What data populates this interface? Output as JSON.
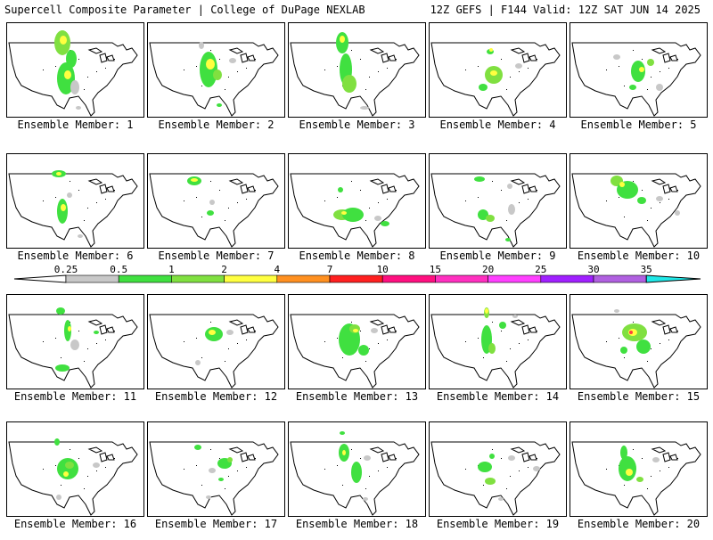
{
  "header": {
    "title": "Supercell Composite Parameter | College of DuPage NEXLAB",
    "run_info": "12Z GEFS | F144 Valid: 12Z SAT JUN 14 2025"
  },
  "caption_prefix": "Ensemble Member:",
  "members": [
    {
      "label": "Ensemble Member: 1",
      "blobs": [
        [
          62,
          22,
          9,
          14,
          "#80e040"
        ],
        [
          63,
          19,
          4,
          5,
          "#ffff40"
        ],
        [
          72,
          40,
          6,
          10,
          "#40e040"
        ],
        [
          66,
          62,
          10,
          18,
          "#40e040"
        ],
        [
          68,
          58,
          4,
          5,
          "#ffff40"
        ],
        [
          76,
          72,
          5,
          8,
          "#c8c8c8"
        ],
        [
          80,
          95,
          3,
          2,
          "#c8c8c8"
        ]
      ]
    },
    {
      "label": "Ensemble Member: 2",
      "blobs": [
        [
          60,
          25,
          3,
          4,
          "#c8c8c8"
        ],
        [
          68,
          52,
          10,
          20,
          "#40e040"
        ],
        [
          70,
          46,
          5,
          6,
          "#ffff40"
        ],
        [
          78,
          58,
          5,
          6,
          "#80e040"
        ],
        [
          95,
          42,
          4,
          3,
          "#c8c8c8"
        ],
        [
          80,
          92,
          3,
          2,
          "#40e040"
        ]
      ]
    },
    {
      "label": "Ensemble Member: 3",
      "blobs": [
        [
          60,
          22,
          7,
          12,
          "#40e040"
        ],
        [
          60,
          18,
          3,
          4,
          "#ffff40"
        ],
        [
          64,
          52,
          7,
          18,
          "#40e040"
        ],
        [
          68,
          68,
          8,
          10,
          "#80e040"
        ],
        [
          85,
          95,
          5,
          2,
          "#c8c8c8"
        ]
      ]
    },
    {
      "label": "Ensemble Member: 4",
      "blobs": [
        [
          68,
          32,
          4,
          3,
          "#40e040"
        ],
        [
          69,
          30,
          2,
          2,
          "#ffff40"
        ],
        [
          72,
          58,
          10,
          10,
          "#80e040"
        ],
        [
          72,
          56,
          4,
          3,
          "#ffff40"
        ],
        [
          100,
          48,
          4,
          3,
          "#c8c8c8"
        ],
        [
          60,
          72,
          5,
          4,
          "#40e040"
        ]
      ]
    },
    {
      "label": "Ensemble Member: 5",
      "blobs": [
        [
          52,
          38,
          4,
          3,
          "#c8c8c8"
        ],
        [
          76,
          54,
          8,
          12,
          "#40e040"
        ],
        [
          80,
          52,
          3,
          3,
          "#ffff40"
        ],
        [
          90,
          44,
          4,
          4,
          "#80e040"
        ],
        [
          70,
          72,
          4,
          3,
          "#40e040"
        ],
        [
          100,
          72,
          4,
          4,
          "#c8c8c8"
        ]
      ]
    },
    {
      "label": "Ensemble Member: 6",
      "blobs": [
        [
          58,
          22,
          8,
          4,
          "#40e040"
        ],
        [
          58,
          22,
          3,
          2,
          "#ffff40"
        ],
        [
          62,
          64,
          6,
          14,
          "#40e040"
        ],
        [
          63,
          60,
          3,
          4,
          "#ffff40"
        ],
        [
          70,
          46,
          3,
          3,
          "#c8c8c8"
        ],
        [
          82,
          92,
          3,
          2,
          "#c8c8c8"
        ]
      ]
    },
    {
      "label": "Ensemble Member: 7",
      "blobs": [
        [
          52,
          30,
          8,
          5,
          "#40e040"
        ],
        [
          52,
          29,
          4,
          2,
          "#ffff40"
        ],
        [
          70,
          66,
          4,
          3,
          "#40e040"
        ],
        [
          72,
          54,
          3,
          3,
          "#c8c8c8"
        ]
      ]
    },
    {
      "label": "Ensemble Member: 8",
      "blobs": [
        [
          60,
          68,
          10,
          6,
          "#80e040"
        ],
        [
          72,
          68,
          12,
          8,
          "#40e040"
        ],
        [
          62,
          66,
          3,
          2,
          "#ffff40"
        ],
        [
          58,
          40,
          3,
          3,
          "#40e040"
        ],
        [
          100,
          72,
          4,
          3,
          "#c8c8c8"
        ],
        [
          108,
          78,
          5,
          3,
          "#40e040"
        ]
      ]
    },
    {
      "label": "Ensemble Member: 9",
      "blobs": [
        [
          56,
          28,
          6,
          3,
          "#40e040"
        ],
        [
          60,
          68,
          6,
          6,
          "#40e040"
        ],
        [
          68,
          72,
          5,
          4,
          "#80e040"
        ],
        [
          92,
          62,
          4,
          6,
          "#c8c8c8"
        ],
        [
          88,
          96,
          3,
          2,
          "#40e040"
        ],
        [
          90,
          36,
          3,
          3,
          "#c8c8c8"
        ]
      ]
    },
    {
      "label": "Ensemble Member: 10",
      "blobs": [
        [
          52,
          30,
          7,
          6,
          "#80e040"
        ],
        [
          64,
          40,
          12,
          10,
          "#40e040"
        ],
        [
          58,
          34,
          3,
          3,
          "#ffff40"
        ],
        [
          80,
          52,
          5,
          4,
          "#40e040"
        ],
        [
          100,
          50,
          4,
          3,
          "#c8c8c8"
        ],
        [
          120,
          66,
          3,
          3,
          "#c8c8c8"
        ]
      ]
    },
    {
      "label": "Ensemble Member: 11",
      "blobs": [
        [
          60,
          18,
          5,
          4,
          "#40e040"
        ],
        [
          68,
          40,
          4,
          12,
          "#40e040"
        ],
        [
          70,
          38,
          2,
          3,
          "#ffff40"
        ],
        [
          76,
          56,
          5,
          6,
          "#c8c8c8"
        ],
        [
          62,
          82,
          8,
          4,
          "#40e040"
        ],
        [
          100,
          42,
          3,
          2,
          "#40e040"
        ]
      ]
    },
    {
      "label": "Ensemble Member: 12",
      "blobs": [
        [
          74,
          44,
          10,
          8,
          "#40e040"
        ],
        [
          72,
          42,
          4,
          3,
          "#ffff40"
        ],
        [
          92,
          42,
          4,
          3,
          "#c8c8c8"
        ],
        [
          56,
          76,
          3,
          3,
          "#c8c8c8"
        ]
      ]
    },
    {
      "label": "Ensemble Member: 13",
      "blobs": [
        [
          68,
          50,
          12,
          18,
          "#40e040"
        ],
        [
          74,
          38,
          6,
          5,
          "#80e040"
        ],
        [
          75,
          40,
          3,
          2,
          "#ffff40"
        ],
        [
          84,
          62,
          6,
          6,
          "#40e040"
        ],
        [
          96,
          40,
          4,
          3,
          "#c8c8c8"
        ]
      ]
    },
    {
      "label": "Ensemble Member: 14",
      "blobs": [
        [
          64,
          20,
          3,
          6,
          "#80e040"
        ],
        [
          64,
          18,
          2,
          3,
          "#ffff40"
        ],
        [
          64,
          50,
          6,
          16,
          "#40e040"
        ],
        [
          70,
          60,
          4,
          6,
          "#80e040"
        ],
        [
          82,
          34,
          4,
          4,
          "#40e040"
        ],
        [
          96,
          24,
          3,
          2,
          "#c8c8c8"
        ]
      ]
    },
    {
      "label": "Ensemble Member: 15",
      "blobs": [
        [
          52,
          18,
          3,
          2,
          "#c8c8c8"
        ],
        [
          72,
          42,
          14,
          10,
          "#80e040"
        ],
        [
          70,
          42,
          5,
          4,
          "#ffff40"
        ],
        [
          68,
          42,
          2,
          2,
          "#ff4040"
        ],
        [
          82,
          58,
          8,
          8,
          "#40e040"
        ],
        [
          60,
          62,
          4,
          4,
          "#40e040"
        ]
      ]
    },
    {
      "label": "Ensemble Member: 16",
      "blobs": [
        [
          56,
          22,
          3,
          4,
          "#40e040"
        ],
        [
          68,
          52,
          12,
          12,
          "#40e040"
        ],
        [
          70,
          48,
          5,
          4,
          "#80e040"
        ],
        [
          66,
          58,
          3,
          3,
          "#ffff40"
        ],
        [
          100,
          48,
          4,
          3,
          "#c8c8c8"
        ],
        [
          58,
          84,
          3,
          3,
          "#c8c8c8"
        ]
      ]
    },
    {
      "label": "Ensemble Member: 17",
      "blobs": [
        [
          56,
          28,
          4,
          3,
          "#40e040"
        ],
        [
          86,
          46,
          8,
          6,
          "#40e040"
        ],
        [
          92,
          42,
          3,
          3,
          "#80e040"
        ],
        [
          72,
          54,
          4,
          3,
          "#c8c8c8"
        ],
        [
          82,
          64,
          3,
          2,
          "#40e040"
        ],
        [
          68,
          84,
          3,
          2,
          "#c8c8c8"
        ]
      ]
    },
    {
      "label": "Ensemble Member: 18",
      "blobs": [
        [
          62,
          34,
          6,
          10,
          "#40e040"
        ],
        [
          62,
          34,
          2,
          3,
          "#ffff40"
        ],
        [
          76,
          56,
          6,
          12,
          "#40e040"
        ],
        [
          60,
          12,
          3,
          2,
          "#40e040"
        ],
        [
          88,
          40,
          4,
          3,
          "#c8c8c8"
        ],
        [
          86,
          86,
          3,
          2,
          "#c8c8c8"
        ]
      ]
    },
    {
      "label": "Ensemble Member: 19",
      "blobs": [
        [
          62,
          50,
          8,
          6,
          "#40e040"
        ],
        [
          68,
          66,
          6,
          4,
          "#80e040"
        ],
        [
          70,
          38,
          3,
          3,
          "#40e040"
        ],
        [
          92,
          40,
          4,
          3,
          "#c8c8c8"
        ],
        [
          120,
          52,
          4,
          3,
          "#c8c8c8"
        ],
        [
          80,
          86,
          3,
          2,
          "#c8c8c8"
        ]
      ]
    },
    {
      "label": "Ensemble Member: 20",
      "blobs": [
        [
          60,
          34,
          4,
          8,
          "#40e040"
        ],
        [
          64,
          52,
          10,
          14,
          "#40e040"
        ],
        [
          66,
          56,
          4,
          4,
          "#ffff40"
        ],
        [
          78,
          64,
          4,
          3,
          "#80e040"
        ],
        [
          96,
          42,
          4,
          3,
          "#c8c8c8"
        ]
      ]
    }
  ],
  "legend": {
    "labels": [
      "0.25",
      "0.5",
      "1",
      "2",
      "4",
      "7",
      "10",
      "15",
      "20",
      "25",
      "30",
      "35"
    ],
    "colors": [
      "#c8c8c8",
      "#40e040",
      "#80e040",
      "#ffff40",
      "#ff9020",
      "#ff2020",
      "#ff1080",
      "#ff30c0",
      "#ff40ff",
      "#a020ff",
      "#b060e0",
      "#20e8e8"
    ]
  }
}
